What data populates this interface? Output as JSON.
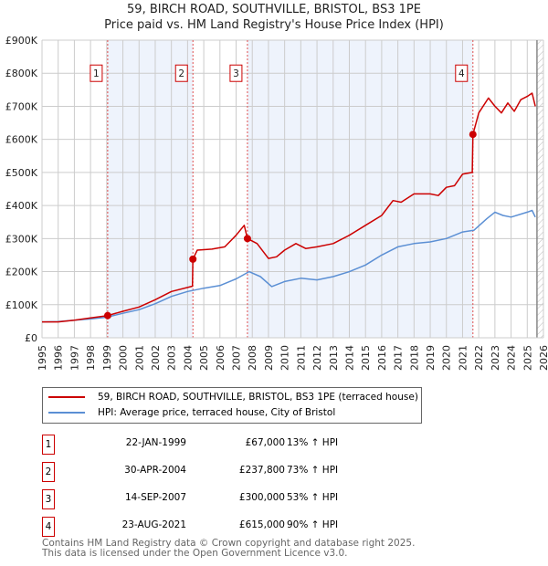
{
  "header": {
    "title": "59, BIRCH ROAD, SOUTHVILLE, BRISTOL, BS3 1PE",
    "subtitle": "Price paid vs. HM Land Registry's House Price Index (HPI)"
  },
  "chart_data": {
    "type": "line",
    "title": "59, BIRCH ROAD, SOUTHVILLE, BRISTOL, BS3 1PE",
    "subtitle": "Price paid vs. HM Land Registry's House Price Index (HPI)",
    "xlim": [
      1995,
      2026
    ],
    "ylim": [
      0,
      900000
    ],
    "x_ticks": [
      "1995",
      "1996",
      "1997",
      "1998",
      "1999",
      "2000",
      "2001",
      "2002",
      "2003",
      "2004",
      "2005",
      "2006",
      "2007",
      "2008",
      "2009",
      "2010",
      "2011",
      "2012",
      "2013",
      "2014",
      "2015",
      "2016",
      "2017",
      "2018",
      "2019",
      "2020",
      "2021",
      "2022",
      "2023",
      "2024",
      "2025",
      "2026"
    ],
    "y_ticks": [
      {
        "v": 0,
        "label": "£0"
      },
      {
        "v": 100000,
        "label": "£100K"
      },
      {
        "v": 200000,
        "label": "£200K"
      },
      {
        "v": 300000,
        "label": "£300K"
      },
      {
        "v": 400000,
        "label": "£400K"
      },
      {
        "v": 500000,
        "label": "£500K"
      },
      {
        "v": 600000,
        "label": "£600K"
      },
      {
        "v": 700000,
        "label": "£700K"
      },
      {
        "v": 800000,
        "label": "£800K"
      },
      {
        "v": 900000,
        "label": "£900K"
      }
    ],
    "grid": true,
    "hatched_from": 2025.6,
    "colors": {
      "property": "#cc0000",
      "hpi": "#5b8fd4",
      "shade": "#eef3fc"
    },
    "series": [
      {
        "name": "59, BIRCH ROAD, SOUTHVILLE, BRISTOL, BS3 1PE (terraced house)",
        "points": [
          [
            1995,
            48000
          ],
          [
            1996,
            48000
          ],
          [
            1997,
            53000
          ],
          [
            1998,
            60000
          ],
          [
            1999.06,
            67000
          ],
          [
            2000,
            80000
          ],
          [
            2001,
            93000
          ],
          [
            2002,
            115000
          ],
          [
            2003,
            140000
          ],
          [
            2004.3,
            156000
          ],
          [
            2004.33,
            237800
          ],
          [
            2004.6,
            265000
          ],
          [
            2005.5,
            268000
          ],
          [
            2006.3,
            275000
          ],
          [
            2007,
            310000
          ],
          [
            2007.5,
            340000
          ],
          [
            2007.7,
            300000
          ],
          [
            2008.3,
            285000
          ],
          [
            2009,
            240000
          ],
          [
            2009.5,
            245000
          ],
          [
            2010,
            265000
          ],
          [
            2010.7,
            285000
          ],
          [
            2011.3,
            270000
          ],
          [
            2012,
            275000
          ],
          [
            2013,
            285000
          ],
          [
            2014,
            310000
          ],
          [
            2015,
            340000
          ],
          [
            2016,
            370000
          ],
          [
            2016.7,
            415000
          ],
          [
            2017.2,
            410000
          ],
          [
            2018,
            435000
          ],
          [
            2019,
            435000
          ],
          [
            2019.5,
            430000
          ],
          [
            2020,
            455000
          ],
          [
            2020.5,
            460000
          ],
          [
            2021,
            495000
          ],
          [
            2021.6,
            500000
          ],
          [
            2021.64,
            615000
          ],
          [
            2022,
            680000
          ],
          [
            2022.6,
            725000
          ],
          [
            2023,
            700000
          ],
          [
            2023.4,
            680000
          ],
          [
            2023.8,
            710000
          ],
          [
            2024.2,
            685000
          ],
          [
            2024.6,
            720000
          ],
          [
            2025,
            730000
          ],
          [
            2025.3,
            740000
          ],
          [
            2025.5,
            700000
          ]
        ]
      },
      {
        "name": "HPI: Average price, terraced house, City of Bristol",
        "points": [
          [
            1995,
            48000
          ],
          [
            1996,
            49000
          ],
          [
            1997,
            53000
          ],
          [
            1998,
            57000
          ],
          [
            1999,
            62000
          ],
          [
            2000,
            74000
          ],
          [
            2001,
            85000
          ],
          [
            2002,
            103000
          ],
          [
            2003,
            125000
          ],
          [
            2004,
            140000
          ],
          [
            2005,
            150000
          ],
          [
            2006,
            158000
          ],
          [
            2007,
            178000
          ],
          [
            2007.8,
            200000
          ],
          [
            2008.5,
            185000
          ],
          [
            2009.2,
            155000
          ],
          [
            2010,
            170000
          ],
          [
            2011,
            180000
          ],
          [
            2012,
            175000
          ],
          [
            2013,
            185000
          ],
          [
            2014,
            200000
          ],
          [
            2015,
            220000
          ],
          [
            2016,
            250000
          ],
          [
            2017,
            275000
          ],
          [
            2018,
            285000
          ],
          [
            2019,
            290000
          ],
          [
            2020,
            300000
          ],
          [
            2021,
            320000
          ],
          [
            2021.7,
            325000
          ],
          [
            2022.5,
            360000
          ],
          [
            2023,
            380000
          ],
          [
            2023.5,
            370000
          ],
          [
            2024,
            365000
          ],
          [
            2025,
            380000
          ],
          [
            2025.3,
            385000
          ],
          [
            2025.5,
            365000
          ]
        ]
      }
    ],
    "sales": [
      {
        "n": "1",
        "x": 1999.06,
        "price": 67000,
        "date": "22-JAN-1999",
        "price_label": "£67,000",
        "hpi": "13% ↑ HPI"
      },
      {
        "n": "2",
        "x": 2004.33,
        "price": 237800,
        "date": "30-APR-2004",
        "price_label": "£237,800",
        "hpi": "73% ↑ HPI"
      },
      {
        "n": "3",
        "x": 2007.7,
        "price": 300000,
        "date": "14-SEP-2007",
        "price_label": "£300,000",
        "hpi": "53% ↑ HPI"
      },
      {
        "n": "4",
        "x": 2021.64,
        "price": 615000,
        "date": "23-AUG-2021",
        "price_label": "£615,000",
        "hpi": "90% ↑ HPI"
      }
    ]
  },
  "legend": {
    "property": "59, BIRCH ROAD, SOUTHVILLE, BRISTOL, BS3 1PE (terraced house)",
    "hpi": "HPI: Average price, terraced house, City of Bristol"
  },
  "footer": {
    "line1": "Contains HM Land Registry data © Crown copyright and database right 2025.",
    "line2": "This data is licensed under the Open Government Licence v3.0."
  }
}
